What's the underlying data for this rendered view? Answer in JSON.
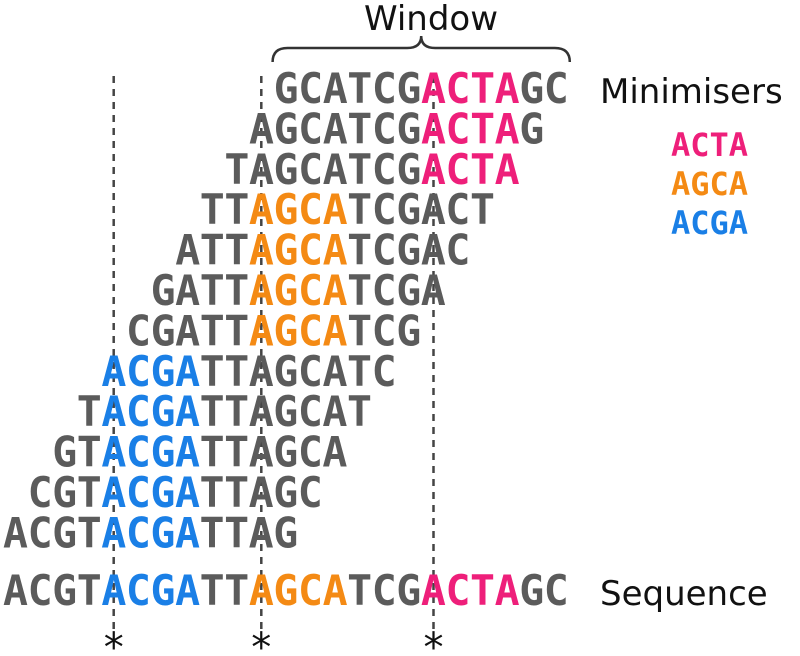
{
  "title": "Window",
  "labels": {
    "minimisers": "Minimisers",
    "sequence": "Sequence"
  },
  "colors": {
    "default": "#5b5b5b",
    "ACTA": "#ee1f7a",
    "AGCA": "#f48a14",
    "ACGA": "#1a7fe6"
  },
  "legend": [
    {
      "text": "ACTA",
      "color_key": "ACTA"
    },
    {
      "text": "AGCA",
      "color_key": "AGCA"
    },
    {
      "text": "ACGA",
      "color_key": "ACGA"
    }
  ],
  "sequence": "ACGTACGATTAGCATCGACTAGC",
  "kmer_size": 4,
  "window_rows": [
    {
      "start": 11,
      "text": "GCATCGACTAGC",
      "highlight": {
        "offset": 6,
        "color_key": "ACTA"
      }
    },
    {
      "start": 10,
      "text": "AGCATCGACTAG",
      "highlight": {
        "offset": 7,
        "color_key": "ACTA"
      }
    },
    {
      "start": 9,
      "text": "TAGCATCGACTA",
      "highlight": {
        "offset": 8,
        "color_key": "ACTA"
      }
    },
    {
      "start": 8,
      "text": "TTAGCATCGACT",
      "highlight": {
        "offset": 2,
        "color_key": "AGCA"
      }
    },
    {
      "start": 7,
      "text": "ATTAGCATCGAC",
      "highlight": {
        "offset": 3,
        "color_key": "AGCA"
      }
    },
    {
      "start": 6,
      "text": "GATTAGCATCGA",
      "highlight": {
        "offset": 4,
        "color_key": "AGCA"
      }
    },
    {
      "start": 5,
      "text": "CGATTAGCATCG",
      "highlight": {
        "offset": 5,
        "color_key": "AGCA"
      }
    },
    {
      "start": 4,
      "text": "ACGATTAGCATC",
      "highlight": {
        "offset": 0,
        "color_key": "ACGA"
      }
    },
    {
      "start": 3,
      "text": "TACGATTAGCAT",
      "highlight": {
        "offset": 1,
        "color_key": "ACGA"
      }
    },
    {
      "start": 2,
      "text": "GTACGATTAGCA",
      "highlight": {
        "offset": 2,
        "color_key": "ACGA"
      }
    },
    {
      "start": 1,
      "text": "CGTACGATTAGC",
      "highlight": {
        "offset": 3,
        "color_key": "ACGA"
      }
    },
    {
      "start": 0,
      "text": "ACGTACGATTAG",
      "highlight": {
        "offset": 4,
        "color_key": "ACGA"
      }
    }
  ],
  "sequence_highlights": [
    {
      "offset": 4,
      "color_key": "ACGA"
    },
    {
      "offset": 10,
      "color_key": "AGCA"
    },
    {
      "offset": 17,
      "color_key": "ACTA"
    }
  ],
  "markers": [
    {
      "offset": 4,
      "symbol": "*"
    },
    {
      "offset": 10,
      "symbol": "*"
    },
    {
      "offset": 17,
      "symbol": "*"
    }
  ],
  "window_brace_range": [
    11,
    22
  ]
}
